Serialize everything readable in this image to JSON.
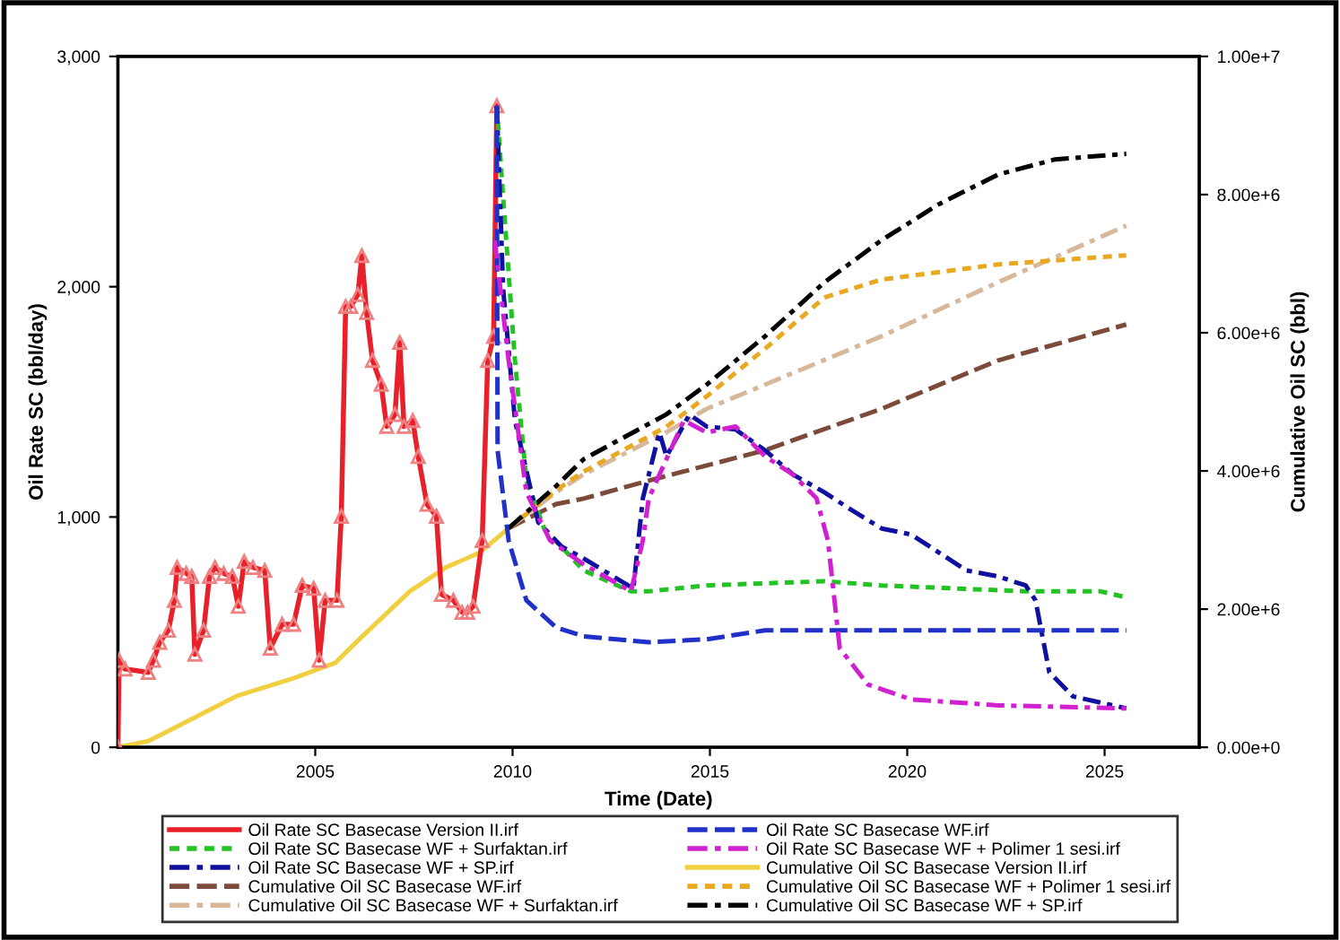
{
  "chart_data": {
    "type": "line",
    "xlabel": "Time (Date)",
    "ylabel": "Oil Rate SC (bbl/day)",
    "y2label": "Cumulative Oil SC (bbl)",
    "xlim": [
      2000,
      2027.4
    ],
    "xticks": [
      2005,
      2010,
      2015,
      2020,
      2025
    ],
    "ylim": [
      0,
      3000
    ],
    "yticks": [
      0,
      {
        "value": 1000,
        "label": "1,000"
      },
      {
        "value": 2000,
        "label": "2,000"
      },
      {
        "value": 3000,
        "label": "3,000"
      }
    ],
    "y2lim": [
      0,
      10000000
    ],
    "y2ticks": [
      {
        "value": 0,
        "label": "0.00e+0"
      },
      {
        "value": 2000000,
        "label": "2.00e+6"
      },
      {
        "value": 4000000,
        "label": "4.00e+6"
      },
      {
        "value": 6000000,
        "label": "6.00e+6"
      },
      {
        "value": 8000000,
        "label": "8.00e+6"
      },
      {
        "value": 10000000,
        "label": "1.00e+7"
      }
    ],
    "grid": false,
    "legend": "bottom",
    "series": [
      {
        "name": "Oil Rate SC Basecase Version II.irf",
        "color": "#e8202a",
        "marker": "triangle",
        "line_style": "solid",
        "x": [
          2000.0,
          2000.03,
          2000.18,
          2000.77,
          2000.9,
          2001.06,
          2001.28,
          2001.43,
          2001.5,
          2001.73,
          2001.87,
          2001.95,
          2002.17,
          2002.32,
          2002.46,
          2002.68,
          2002.9,
          2003.05,
          2003.2,
          2003.42,
          2003.72,
          2003.86,
          2004.16,
          2004.45,
          2004.67,
          2004.96,
          2005.1,
          2005.25,
          2005.55,
          2005.66,
          2005.77,
          2005.9,
          2006.08,
          2006.18,
          2006.3,
          2006.45,
          2006.67,
          2006.81,
          2007.02,
          2007.14,
          2007.25,
          2007.47,
          2007.61,
          2007.83,
          2008.07,
          2008.2,
          2008.5,
          2008.72,
          2008.86,
          2009.0,
          2009.23,
          2009.37,
          2009.52,
          2009.6
        ],
        "values": [
          0,
          378,
          340,
          325,
          378,
          456,
          508,
          638,
          781,
          755,
          742,
          404,
          508,
          742,
          781,
          755,
          742,
          612,
          807,
          781,
          768,
          430,
          534,
          534,
          703,
          690,
          378,
          638,
          638,
          1003,
          1914,
          1914,
          1966,
          2135,
          1888,
          1680,
          1576,
          1393,
          1445,
          1758,
          1393,
          1419,
          1263,
          1055,
          1003,
          664,
          638,
          586,
          586,
          612,
          898,
          1680,
          1784,
          2786
        ]
      },
      {
        "name": "Oil Rate SC Basecase WF + Surfaktan.irf",
        "color": "#22c322",
        "line_style": "dotted",
        "x": [
          2009.6,
          2009.73,
          2010.06,
          2010.35,
          2010.8,
          2011.8,
          2013.0,
          2013.45,
          2014.92,
          2017.9,
          2019.35,
          2023.0,
          2024.9,
          2025.55
        ],
        "values": [
          2786,
          2461,
          1680,
          1159,
          950,
          768,
          677,
          677,
          703,
          721,
          703,
          677,
          677,
          651
        ]
      },
      {
        "name": "Oil Rate SC Basecase WF + SP.irf",
        "color": "#1010a0",
        "line_style": "dashdot",
        "x": [
          2009.6,
          2009.76,
          2010.06,
          2010.65,
          2011.24,
          2011.8,
          2012.55,
          2013.06,
          2013.3,
          2013.72,
          2013.9,
          2014.48,
          2014.92,
          2015.65,
          2016.4,
          2017.1,
          2017.9,
          2018.6,
          2019.35,
          2020.1,
          2021.5,
          2022.3,
          2023.0,
          2023.25,
          2023.6,
          2024.2,
          2025.55
        ],
        "values": [
          2786,
          1992,
          1419,
          977,
          872,
          820,
          742,
          690,
          1081,
          1367,
          1263,
          1445,
          1393,
          1380,
          1289,
          1185,
          1107,
          1029,
          950,
          924,
          768,
          742,
          703,
          638,
          326,
          221,
          169
        ]
      },
      {
        "name": "Cumulative Oil SC Basecase WF.irf",
        "color": "#7b4a3a",
        "line_style": "dashed",
        "axis": "y2",
        "x": [
          2009.9,
          2011.1,
          2011.8,
          2013.45,
          2016.4,
          2019.35,
          2022.3,
          2025.55
        ],
        "values": [
          3170000,
          3520000,
          3600000,
          3860000,
          4300000,
          4900000,
          5600000,
          6120000
        ]
      },
      {
        "name": "Cumulative Oil SC Basecase WF + Surfaktan.irf",
        "color": "#d8b89a",
        "line_style": "dashdot",
        "axis": "y2",
        "x": [
          2009.9,
          2011.1,
          2011.8,
          2013.9,
          2014.92,
          2016.4,
          2019.35,
          2022.3,
          2025.55
        ],
        "values": [
          3170000,
          3690000,
          3950000,
          4560000,
          4900000,
          5250000,
          5950000,
          6730000,
          7550000
        ]
      },
      {
        "name": "Oil Rate SC Basecase WF.irf",
        "color": "#2030c8",
        "line_style": "dashed",
        "x": [
          2009.6,
          2009.62,
          2009.9,
          2010.35,
          2011.1,
          2011.8,
          2013.45,
          2014.92,
          2016.4,
          2019.35,
          2025.55
        ],
        "values": [
          2786,
          1289,
          898,
          638,
          521,
          482,
          456,
          469,
          508,
          508,
          508
        ]
      },
      {
        "name": "Oil Rate SC Basecase WF + Polimer 1 sesi.irf",
        "color": "#d020d0",
        "line_style": "dashdot",
        "x": [
          2009.55,
          2009.9,
          2010.35,
          2010.95,
          2011.8,
          2013.0,
          2013.3,
          2013.45,
          2014.34,
          2014.92,
          2015.65,
          2016.4,
          2017.1,
          2017.7,
          2017.99,
          2018.29,
          2019.0,
          2020.1,
          2022.3,
          2025.55
        ],
        "values": [
          2200,
          1680,
          1107,
          898,
          794,
          677,
          898,
          1081,
          1419,
          1367,
          1393,
          1263,
          1185,
          1081,
          898,
          430,
          273,
          208,
          182,
          169
        ]
      },
      {
        "name": "Cumulative Oil SC Basecase Version II.irf",
        "color": "#f0d040",
        "line_style": "solid",
        "axis": "y2",
        "x": [
          2000.0,
          2000.77,
          2001.5,
          2003.0,
          2004.45,
          2005.5,
          2006.2,
          2007.4,
          2008.3,
          2009.17,
          2009.9
        ],
        "values": [
          0,
          90000,
          300000,
          740000,
          1000000,
          1220000,
          1610000,
          2260000,
          2600000,
          2820000,
          3170000
        ]
      },
      {
        "name": "Cumulative Oil SC Basecase WF + Polimer 1 sesi.irf",
        "color": "#e8a820",
        "line_style": "dotted",
        "axis": "y2",
        "x": [
          2009.9,
          2011.1,
          2011.8,
          2013.9,
          2014.92,
          2016.4,
          2017.9,
          2019.35,
          2022.3,
          2025.55
        ],
        "values": [
          3170000,
          3720000,
          3990000,
          4640000,
          5080000,
          5770000,
          6510000,
          6770000,
          6990000,
          7120000
        ]
      },
      {
        "name": "Cumulative Oil SC Basecase WF + SP.irf",
        "color": "#000000",
        "line_style": "dashdot",
        "axis": "y2",
        "x": [
          2009.9,
          2011.1,
          2011.8,
          2013.9,
          2014.92,
          2016.4,
          2017.9,
          2019.35,
          2020.8,
          2022.3,
          2023.75,
          2025.55
        ],
        "values": [
          3170000,
          3780000,
          4170000,
          4820000,
          5250000,
          5950000,
          6730000,
          7340000,
          7860000,
          8290000,
          8510000,
          8590000
        ]
      }
    ]
  }
}
